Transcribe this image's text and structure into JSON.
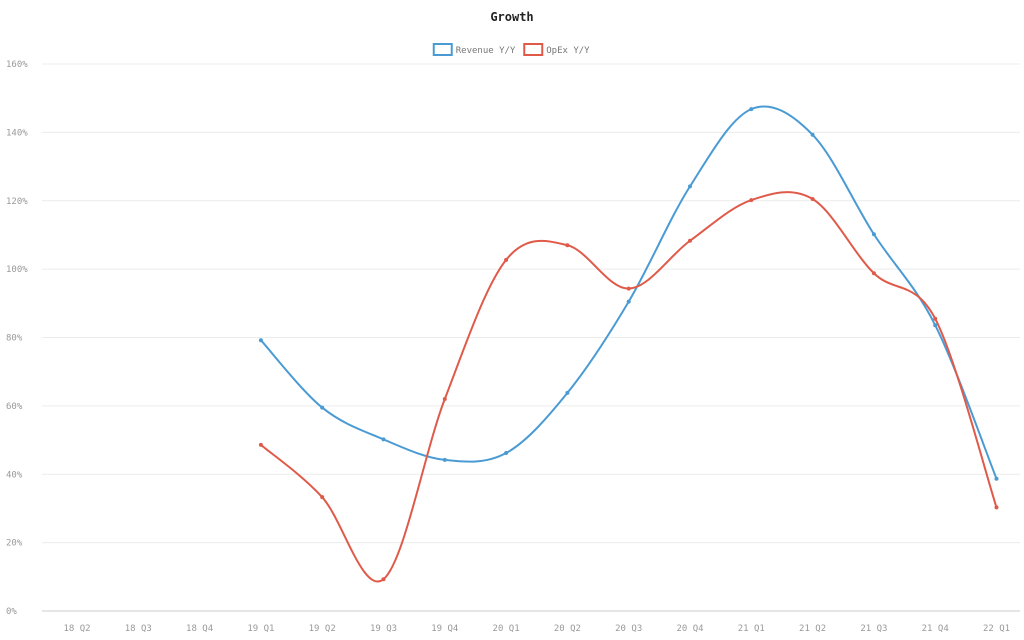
{
  "chart_data": {
    "type": "line",
    "title": "Growth",
    "xlabel": "",
    "ylabel": "",
    "categories": [
      "18 Q2",
      "18 Q3",
      "18 Q4",
      "19 Q1",
      "19 Q2",
      "19 Q3",
      "19 Q4",
      "20 Q1",
      "20 Q2",
      "20 Q3",
      "20 Q4",
      "21 Q1",
      "21 Q2",
      "21 Q3",
      "21 Q4",
      "22 Q1"
    ],
    "ylim": [
      0,
      160
    ],
    "yticks": [
      0,
      20,
      40,
      60,
      80,
      100,
      120,
      140,
      160
    ],
    "ytick_labels": [
      "0%",
      "20%",
      "40%",
      "60%",
      "80%",
      "100%",
      "120%",
      "140%",
      "160%"
    ],
    "grid": true,
    "legend_position": "top-center",
    "series": [
      {
        "name": "Revenue Y/Y",
        "color": "#4a9bd4",
        "values": [
          null,
          null,
          null,
          79.2,
          59.5,
          50.2,
          44.2,
          46.2,
          63.8,
          90.5,
          124.2,
          146.8,
          139.3,
          110.2,
          83.6,
          38.7
        ]
      },
      {
        "name": "OpEx Y/Y",
        "color": "#e05a4a",
        "values": [
          null,
          null,
          null,
          48.6,
          33.3,
          9.3,
          62.0,
          102.7,
          107.0,
          94.3,
          108.3,
          120.2,
          120.5,
          98.8,
          85.5,
          30.3
        ]
      }
    ]
  }
}
